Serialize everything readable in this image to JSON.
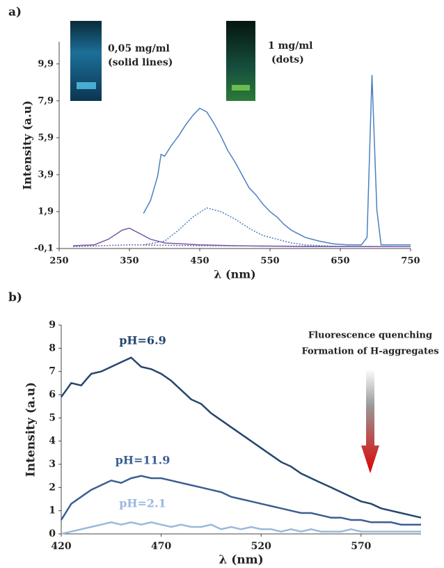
{
  "chart_data": [
    {
      "type": "line",
      "panel": "a)",
      "x_label": "λ (nm)",
      "y_label": "Intensity (a.u)",
      "annotations": [
        "0,05 mg/ml",
        "(solid lines)",
        "1 mg/ml",
        "(dots)"
      ],
      "xlim": [
        250,
        750
      ],
      "xticks": [
        250,
        350,
        450,
        550,
        650,
        750
      ],
      "ylim": [
        -0.1,
        11.1
      ],
      "yticks": [
        {
          "value": -0.1,
          "label": "-0,1"
        },
        {
          "value": 1.9,
          "label": "1,9"
        },
        {
          "value": 3.9,
          "label": "3,9"
        },
        {
          "value": 5.9,
          "label": "5,9"
        },
        {
          "value": 7.9,
          "label": "7,9"
        },
        {
          "value": 9.9,
          "label": "9,9"
        }
      ],
      "series": [
        {
          "color": "#4a7fc1",
          "dash": false,
          "x": [
            370,
            380,
            390,
            395,
            400,
            410,
            420,
            430,
            440,
            450,
            460,
            470,
            480,
            490,
            500,
            510,
            520,
            530,
            540,
            550,
            560,
            570,
            580,
            590,
            600,
            620,
            640,
            660,
            680,
            688,
            695,
            702,
            708,
            720,
            750
          ],
          "values": [
            1.8,
            2.5,
            3.8,
            5.0,
            4.9,
            5.5,
            6.0,
            6.6,
            7.1,
            7.5,
            7.3,
            6.7,
            6.0,
            5.2,
            4.6,
            3.9,
            3.2,
            2.8,
            2.3,
            1.9,
            1.6,
            1.2,
            0.9,
            0.7,
            0.5,
            0.3,
            0.15,
            0.1,
            0.1,
            0.5,
            9.3,
            2.0,
            0.1,
            0.1,
            0.1
          ]
        },
        {
          "color": "#4a7fc1",
          "dash": true,
          "x": [
            370,
            400,
            420,
            440,
            460,
            480,
            500,
            520,
            540,
            560,
            580,
            600,
            650,
            750
          ],
          "values": [
            0.1,
            0.3,
            0.9,
            1.6,
            2.1,
            1.9,
            1.5,
            1.0,
            0.6,
            0.4,
            0.2,
            0.1,
            0.0,
            0.0
          ]
        },
        {
          "color": "#7a5aa8",
          "dash": false,
          "x": [
            270,
            300,
            320,
            340,
            350,
            360,
            380,
            400,
            450,
            500,
            600,
            750
          ],
          "values": [
            0.05,
            0.1,
            0.4,
            0.9,
            1.0,
            0.8,
            0.4,
            0.2,
            0.1,
            0.05,
            0.0,
            0.0
          ]
        },
        {
          "color": "#7a5aa8",
          "dash": true,
          "x": [
            270,
            350,
            450,
            750
          ],
          "values": [
            0.0,
            0.1,
            0.05,
            0.0
          ]
        }
      ]
    },
    {
      "type": "line",
      "panel": "b)",
      "x_label": "λ (nm)",
      "y_label": "Intensity (a.u)",
      "annotations": [
        "Fluorescence quenching",
        "Formation of H-aggregates"
      ],
      "xlim": [
        420,
        600
      ],
      "xticks": [
        420,
        470,
        520,
        570
      ],
      "ylim": [
        0,
        9
      ],
      "yticks": [
        0,
        1,
        2,
        3,
        4,
        5,
        6,
        7,
        8,
        9
      ],
      "x": [
        420,
        425,
        430,
        435,
        440,
        445,
        450,
        455,
        460,
        465,
        470,
        475,
        480,
        485,
        490,
        495,
        500,
        505,
        510,
        515,
        520,
        525,
        530,
        535,
        540,
        545,
        550,
        555,
        560,
        565,
        570,
        575,
        580,
        585,
        590,
        595,
        600
      ],
      "series": [
        {
          "name": "pH=6.9",
          "color": "#24466e",
          "dash": false,
          "values": [
            5.9,
            6.5,
            6.4,
            6.9,
            7.0,
            7.2,
            7.4,
            7.6,
            7.2,
            7.1,
            6.9,
            6.6,
            6.2,
            5.8,
            5.6,
            5.2,
            4.9,
            4.6,
            4.3,
            4.0,
            3.7,
            3.4,
            3.1,
            2.9,
            2.6,
            2.4,
            2.2,
            2.0,
            1.8,
            1.6,
            1.4,
            1.3,
            1.1,
            1.0,
            0.9,
            0.8,
            0.7
          ]
        },
        {
          "name": "pH=11.9",
          "color": "#3a5f94",
          "dash": false,
          "values": [
            0.6,
            1.3,
            1.6,
            1.9,
            2.1,
            2.3,
            2.2,
            2.4,
            2.5,
            2.4,
            2.4,
            2.3,
            2.2,
            2.1,
            2.0,
            1.9,
            1.8,
            1.6,
            1.5,
            1.4,
            1.3,
            1.2,
            1.1,
            1.0,
            0.9,
            0.9,
            0.8,
            0.7,
            0.7,
            0.6,
            0.6,
            0.5,
            0.5,
            0.5,
            0.4,
            0.4,
            0.4
          ]
        },
        {
          "name": "pH=2.1",
          "color": "#9ab8dd",
          "dash": false,
          "values": [
            0.0,
            0.1,
            0.2,
            0.3,
            0.4,
            0.5,
            0.4,
            0.5,
            0.4,
            0.5,
            0.4,
            0.3,
            0.4,
            0.3,
            0.3,
            0.4,
            0.2,
            0.3,
            0.2,
            0.3,
            0.2,
            0.2,
            0.1,
            0.2,
            0.1,
            0.2,
            0.1,
            0.1,
            0.1,
            0.2,
            0.1,
            0.1,
            0.1,
            0.1,
            0.1,
            0.1,
            0.1
          ]
        }
      ]
    }
  ]
}
